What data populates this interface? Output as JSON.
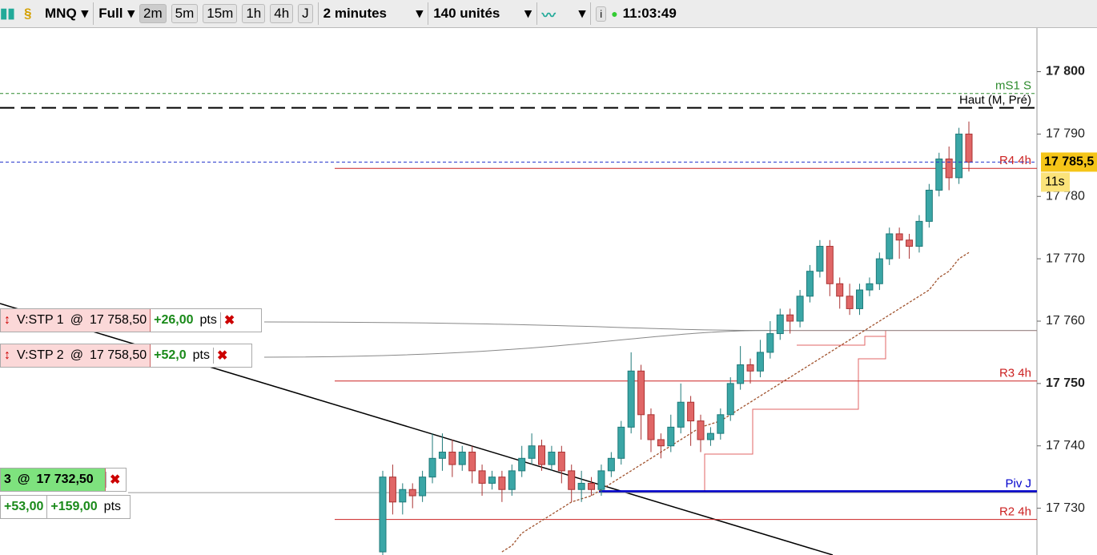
{
  "toolbar": {
    "symbol": "MNQ",
    "view": "Full",
    "periods": [
      "2m",
      "5m",
      "15m",
      "1h",
      "4h",
      "J"
    ],
    "interval": "2 minutes",
    "units": "140 unités",
    "clock": "11:03:49"
  },
  "chart_data": {
    "type": "candlestick",
    "ylim": [
      17722.5,
      17807
    ],
    "yticks": [
      {
        "value": 17730,
        "label": "17 730"
      },
      {
        "value": 17740,
        "label": "17 740"
      },
      {
        "value": 17750,
        "label": "17 750"
      },
      {
        "value": 17760,
        "label": "17 760"
      },
      {
        "value": 17770,
        "label": "17 770"
      },
      {
        "value": 17780,
        "label": "17 780"
      },
      {
        "value": 17790,
        "label": "17 790"
      },
      {
        "value": 17800,
        "label": "17 800"
      }
    ],
    "up_color": "#3aa6a6",
    "down_color": "#e06666",
    "open": [
      17723,
      17735,
      17731,
      17733,
      17732,
      17735,
      17738,
      17739,
      17737,
      17739,
      17736,
      17734,
      17735,
      17733,
      17736,
      17738,
      17740,
      17737,
      17739,
      17736,
      17733,
      17734,
      17733,
      17736,
      17738,
      17743,
      17752,
      17745,
      17741,
      17740,
      17743,
      17747,
      17744,
      17741,
      17742,
      17745,
      17750,
      17753,
      17752,
      17755,
      17758,
      17761,
      17760,
      17764,
      17768,
      17772,
      17766,
      17764,
      17762,
      17765,
      17766,
      17770,
      17774,
      17773,
      17772,
      17776,
      17781,
      17786,
      17783,
      17790
    ],
    "high": [
      17736,
      17737,
      17734,
      17734,
      17736,
      17742,
      17742,
      17741,
      17740,
      17740,
      17737,
      17736,
      17736,
      17737,
      17740,
      17742,
      17741,
      17740,
      17740,
      17737,
      17736,
      17735,
      17737,
      17739,
      17744,
      17755,
      17753,
      17746,
      17742,
      17745,
      17750,
      17748,
      17745,
      17743,
      17746,
      17751,
      17756,
      17754,
      17757,
      17760,
      17762,
      17762,
      17765,
      17769,
      17773,
      17773,
      17767,
      17766,
      17766,
      17767,
      17771,
      17775,
      17775,
      17774,
      17777,
      17782,
      17787,
      17788,
      17791,
      17792
    ],
    "low": [
      17722,
      17729,
      17729,
      17730,
      17731,
      17734,
      17736,
      17735,
      17736,
      17734,
      17732,
      17733,
      17731,
      17732,
      17735,
      17737,
      17736,
      17736,
      17734,
      17731,
      17731,
      17732,
      17732,
      17735,
      17737,
      17742,
      17741,
      17739,
      17738,
      17739,
      17742,
      17740,
      17739,
      17740,
      17741,
      17744,
      17749,
      17750,
      17751,
      17754,
      17757,
      17758,
      17759,
      17763,
      17767,
      17764,
      17762,
      17761,
      17761,
      17764,
      17765,
      17769,
      17770,
      17770,
      17771,
      17775,
      17780,
      17781,
      17782,
      17784
    ],
    "close": [
      17735,
      17731,
      17733,
      17732,
      17735,
      17738,
      17739,
      17737,
      17739,
      17736,
      17734,
      17735,
      17733,
      17736,
      17738,
      17740,
      17737,
      17739,
      17736,
      17733,
      17734,
      17733,
      17736,
      17738,
      17743,
      17752,
      17745,
      17741,
      17740,
      17743,
      17747,
      17744,
      17741,
      17742,
      17745,
      17750,
      17753,
      17752,
      17755,
      17758,
      17761,
      17760,
      17764,
      17768,
      17772,
      17766,
      17764,
      17762,
      17765,
      17766,
      17770,
      17774,
      17773,
      17772,
      17776,
      17781,
      17786,
      17783,
      17790,
      17785.5
    ],
    "ma": {
      "color": "#a0522d",
      "values": [
        null,
        null,
        null,
        null,
        null,
        null,
        null,
        null,
        null,
        null,
        null,
        null,
        17723,
        17724,
        17726,
        17727,
        17728,
        17729,
        17730,
        17731,
        17731.5,
        17732,
        17733,
        17734,
        17735,
        17736,
        17737,
        17738,
        17739,
        17740,
        17741,
        17742,
        17743,
        17743.5,
        17744,
        17745,
        17746,
        17747,
        17748,
        17749,
        17750,
        17751,
        17752,
        17753,
        17754,
        17755,
        17756,
        17757,
        17758,
        17759,
        17760,
        17761,
        17762,
        17763,
        17764,
        17765,
        17767,
        17768,
        17770,
        17771
      ]
    },
    "levels": [
      {
        "name": "mS1 S",
        "value": 17796.5,
        "color": "#2e8b2e",
        "dash": "4 3"
      },
      {
        "name": "Haut (M, Pré)",
        "value": 17794.2,
        "color": "#000000",
        "dash": "18 8"
      },
      {
        "name": "R4 4h",
        "value": 17784.5,
        "color": "#cc2222",
        "dash": ""
      },
      {
        "name": "R3 4h",
        "value": 17750.4,
        "color": "#cc2222",
        "dash": ""
      },
      {
        "name": "Piv J",
        "value": 17732.7,
        "color": "#0000cc",
        "dash": ""
      },
      {
        "name": "R2 4h",
        "value": 17728.2,
        "color": "#cc2222",
        "dash": ""
      }
    ],
    "current_price": {
      "value": 17785.5,
      "label": "17 785,5"
    },
    "countdown": "11s",
    "orders": [
      {
        "name": "V:STP 1",
        "at": "@",
        "price": 17758.5,
        "price_label": "17 758,50",
        "gain": "+26,00",
        "unit": "pts"
      },
      {
        "name": "V:STP 2",
        "at": "@",
        "price": 17758.5,
        "price_label": "17 758,50",
        "gain": "+52,0",
        "unit": "pts"
      }
    ],
    "position": {
      "name": "3",
      "at": "@",
      "price": 17732.5,
      "price_label": "17 732,50",
      "gain1": "+53,00",
      "gain2": "+159,00",
      "unit": "pts"
    }
  }
}
